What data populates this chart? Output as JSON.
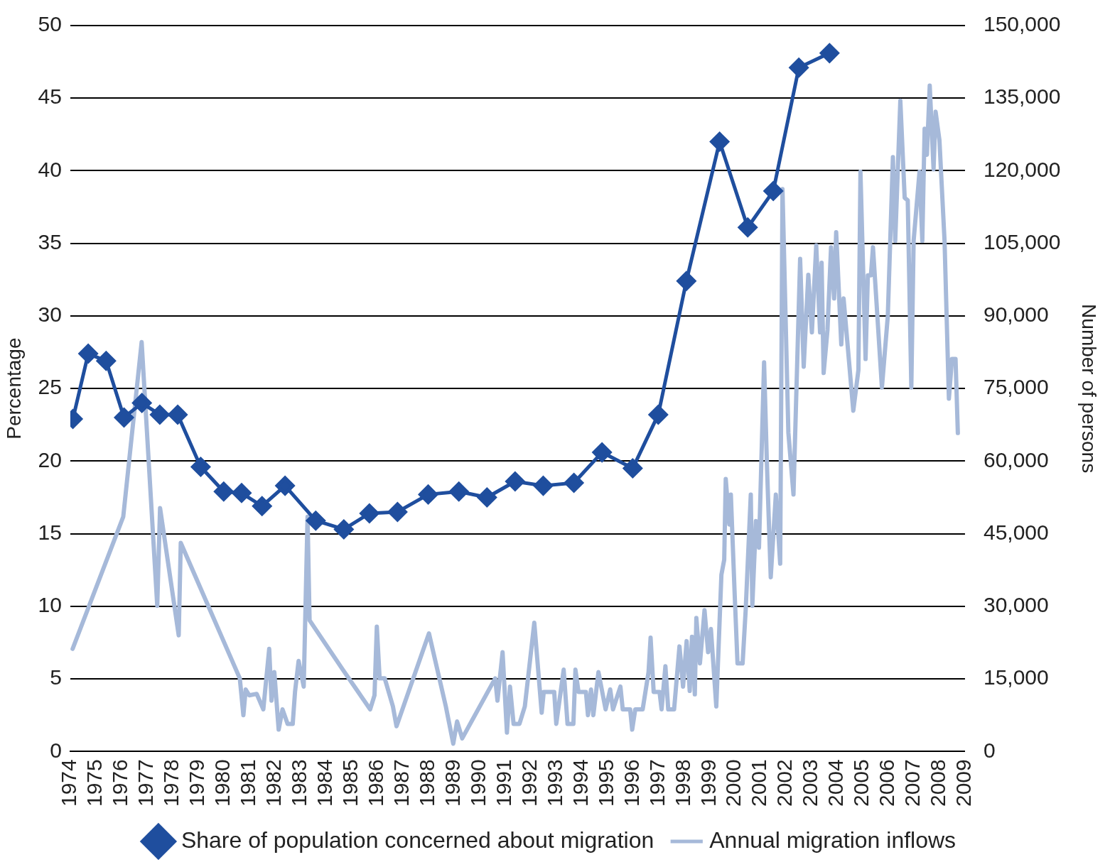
{
  "chart_data": {
    "type": "line",
    "xlim": [
      1974,
      2009
    ],
    "xticks": [
      1974,
      1975,
      1976,
      1977,
      1978,
      1979,
      1980,
      1981,
      1982,
      1983,
      1984,
      1985,
      1986,
      1987,
      1988,
      1989,
      1990,
      1991,
      1992,
      1993,
      1994,
      1995,
      1996,
      1997,
      1998,
      1999,
      2000,
      2001,
      2002,
      2003,
      2004,
      2005,
      2006,
      2007,
      2008,
      2009
    ],
    "ylabel": "Percentage",
    "y2label": "Number of persons",
    "ylim": [
      0,
      50
    ],
    "yticks": [
      0,
      5,
      10,
      15,
      20,
      25,
      30,
      35,
      40,
      45,
      50
    ],
    "y2lim": [
      0,
      150000
    ],
    "y2ticks": [
      0,
      {
        "value": 15000,
        "label": "15,000"
      },
      {
        "value": 30000,
        "label": "30,000"
      },
      {
        "value": 45000,
        "label": "45,000"
      },
      {
        "value": 60000,
        "label": "60,000"
      },
      {
        "value": 75000,
        "label": "75,000"
      },
      {
        "value": 90000,
        "label": "90,000"
      },
      {
        "value": 105000,
        "label": "105,000"
      },
      {
        "value": 120000,
        "label": "120,000"
      },
      {
        "value": 135000,
        "label": "135,000"
      },
      {
        "value": 150000,
        "label": "150,000"
      }
    ],
    "grid": "y",
    "legend": "bottom",
    "series": [
      {
        "name": "Share of population concerned about migration",
        "color": "#1f4e9e",
        "marker": "diamond",
        "line_style": "solid",
        "x": [
          1974.1,
          1974.7,
          1975.4,
          1976.1,
          1976.8,
          1977.5,
          1978.2,
          1979.1,
          1980.0,
          1980.7,
          1981.5,
          1982.4,
          1983.6,
          1984.7,
          1985.7,
          1986.8,
          1988.0,
          1989.2,
          1990.3,
          1991.4,
          1992.5,
          1993.7,
          1994.8,
          1996.0,
          1997.0,
          1998.1,
          1999.4,
          2000.5,
          2001.5,
          2002.5,
          2003.7
        ],
        "values": [
          22.9,
          27.4,
          26.9,
          23.0,
          24.0,
          23.2,
          23.2,
          19.6,
          17.9,
          17.8,
          16.9,
          18.3,
          15.9,
          15.3,
          16.4,
          16.5,
          17.7,
          17.9,
          17.5,
          18.6,
          18.3,
          18.5,
          20.6,
          19.5,
          23.2,
          32.4,
          42.0,
          36.1,
          38.6,
          47.1,
          48.1
        ]
      },
      {
        "name": "Annual migration inflows",
        "color": "#a6b9d9",
        "marker": "none",
        "line_style": "solid",
        "axis": "y2",
        "x": [
          1974.09,
          1976.07,
          1976.79,
          1977.4,
          1977.51,
          1978.24,
          1978.32,
          1980.63,
          1980.77,
          1980.86,
          1981.0,
          1981.29,
          1981.55,
          1981.78,
          1981.87,
          1981.98,
          1982.15,
          1982.3,
          1982.5,
          1982.7,
          1982.79,
          1982.93,
          1983.13,
          1983.28,
          1983.36,
          1984.66,
          1985.73,
          1985.9,
          1985.99,
          1986.1,
          1986.3,
          1986.62,
          1986.76,
          1988.03,
          1988.69,
          1988.98,
          1989.13,
          1989.33,
          1990.62,
          1990.71,
          1990.91,
          1991.08,
          1991.2,
          1991.34,
          1991.57,
          1991.78,
          1992.15,
          1992.44,
          1992.52,
          1992.93,
          1993.01,
          1993.3,
          1993.45,
          1993.68,
          1993.76,
          1993.88,
          1994.17,
          1994.25,
          1994.37,
          1994.46,
          1994.66,
          1994.94,
          1995.12,
          1995.23,
          1995.52,
          1995.61,
          1995.9,
          1995.98,
          1996.1,
          1996.39,
          1996.62,
          1996.7,
          1996.82,
          1997.05,
          1997.13,
          1997.28,
          1997.39,
          1997.62,
          1997.83,
          1997.97,
          1998.11,
          1998.23,
          1998.32,
          1998.43,
          1998.49,
          1998.63,
          1998.81,
          1998.95,
          1999.06,
          1999.27,
          1999.47,
          1999.58,
          1999.64,
          1999.78,
          1999.84,
          1999.99,
          2000.1,
          2000.3,
          2000.42,
          2000.62,
          2000.68,
          2000.82,
          2000.94,
          2001.14,
          2001.25,
          2001.4,
          2001.6,
          2001.77,
          2001.86,
          2002.09,
          2002.29,
          2002.55,
          2002.69,
          2002.87,
          2003.01,
          2003.18,
          2003.33,
          2003.39,
          2003.47,
          2003.62,
          2003.76,
          2003.88,
          2003.96,
          2004.16,
          2004.25,
          2004.63,
          2004.83,
          2004.91,
          2005.11,
          2005.2,
          2005.32,
          2005.4,
          2005.75,
          2005.98,
          2006.18,
          2006.27,
          2006.47,
          2006.64,
          2006.76,
          2006.9,
          2006.99,
          2007.22,
          2007.33,
          2007.42,
          2007.51,
          2007.62,
          2007.77,
          2007.85,
          2008.0,
          2008.2,
          2008.37,
          2008.49,
          2008.63,
          2008.72
        ],
        "values": [
          21200,
          48500,
          84600,
          30100,
          50300,
          24000,
          43100,
          15100,
          7500,
          12800,
          11600,
          11900,
          8700,
          21200,
          10500,
          16400,
          4500,
          8700,
          5700,
          5700,
          12300,
          18700,
          13400,
          48500,
          27100,
          16900,
          8700,
          11600,
          25800,
          15100,
          15100,
          9300,
          5200,
          24400,
          9300,
          1600,
          6200,
          2700,
          15100,
          10500,
          20500,
          3900,
          13400,
          5700,
          5700,
          9300,
          26600,
          8000,
          12300,
          12300,
          5700,
          16900,
          5700,
          5700,
          16900,
          12300,
          12300,
          7500,
          12800,
          7500,
          16400,
          8700,
          12800,
          8700,
          13400,
          8700,
          8700,
          4500,
          8700,
          8700,
          16400,
          23500,
          12300,
          12300,
          8700,
          17600,
          8700,
          8700,
          21700,
          13400,
          22800,
          12500,
          23700,
          11800,
          27600,
          18200,
          29200,
          20500,
          25300,
          9300,
          36500,
          39600,
          56300,
          46900,
          53100,
          32400,
          18200,
          18200,
          29200,
          53100,
          30100,
          47600,
          42100,
          80400,
          59500,
          36000,
          53100,
          38800,
          116200,
          65900,
          53100,
          101800,
          79500,
          98500,
          86600,
          104600,
          86600,
          101000,
          78200,
          87100,
          104200,
          93600,
          107300,
          84100,
          93600,
          70400,
          78800,
          119800,
          81100,
          98400,
          98400,
          104200,
          75200,
          90000,
          122800,
          105500,
          134500,
          114400,
          113900,
          75200,
          105500,
          119800,
          105500,
          128700,
          123300,
          137600,
          120300,
          132200,
          126300,
          105500,
          72900,
          81100,
          81100,
          65800
        ]
      }
    ]
  }
}
